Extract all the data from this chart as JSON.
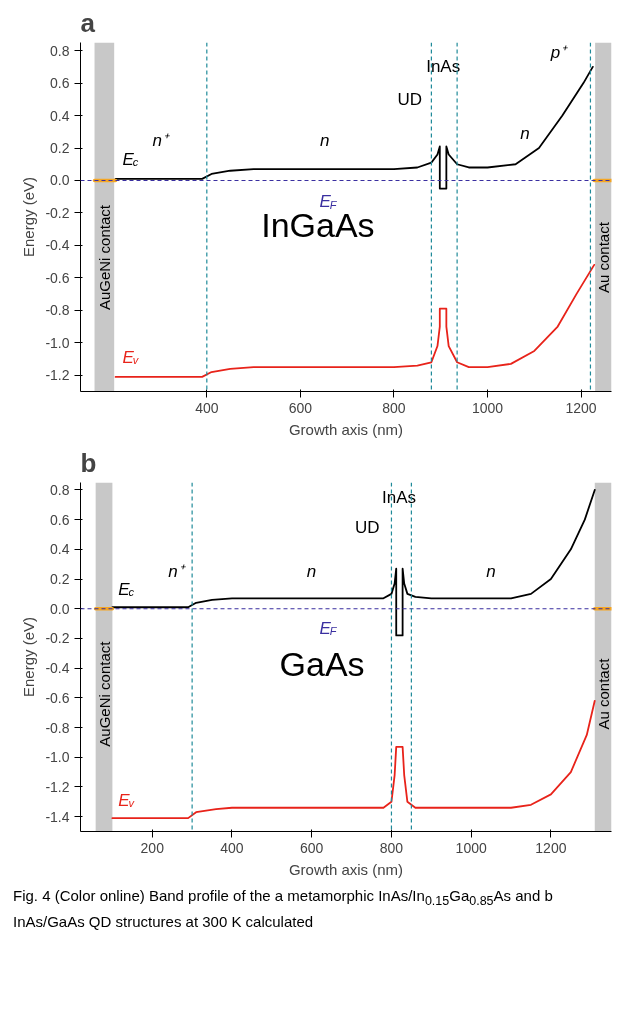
{
  "chart_data": [
    {
      "type": "line",
      "title": "a",
      "subtitle": "InGaAs",
      "xlabel": "Growth axis (nm)",
      "ylabel": "Energy (eV)",
      "xlim": [
        130,
        1265
      ],
      "ylim": [
        -1.3,
        0.85
      ],
      "xticks": [
        400,
        600,
        800,
        1000,
        1200
      ],
      "yticks": [
        {
          "value": 0.8,
          "label": "0.8"
        },
        {
          "value": 0.6,
          "label": "0.6"
        },
        {
          "value": 0.4,
          "label": "0.4"
        },
        {
          "value": 0.2,
          "label": "0.2"
        },
        {
          "value": 0,
          "label": "0.0"
        },
        {
          "value": -0.2,
          "label": "-0.2"
        },
        {
          "value": -0.4,
          "label": "-0.4"
        },
        {
          "value": -0.6,
          "label": "-0.6"
        },
        {
          "value": -0.8,
          "label": "-0.8"
        },
        {
          "value": -1.0,
          "label": "-1.0"
        },
        {
          "value": -1.2,
          "label": "-1.2"
        }
      ],
      "grid": false,
      "legend": "left",
      "line_style": "solid",
      "marker": "none",
      "series": [
        {
          "name": "E$_{c}$",
          "color": "#000000",
          "x": [
            205,
            300,
            390,
            410,
            450,
            500,
            600,
            700,
            800,
            850,
            880,
            893,
            898,
            898,
            912,
            912,
            917,
            935,
            960,
            1000,
            1060,
            1110,
            1160,
            1205,
            1225
          ],
          "values": [
            0.01,
            0.01,
            0.01,
            0.04,
            0.06,
            0.07,
            0.07,
            0.07,
            0.07,
            0.08,
            0.11,
            0.16,
            0.21,
            -0.05,
            -0.05,
            0.21,
            0.16,
            0.1,
            0.08,
            0.08,
            0.1,
            0.2,
            0.4,
            0.6,
            0.7
          ]
        },
        {
          "name": "E$_{v}$",
          "color": "#e8231a",
          "x": [
            205,
            300,
            390,
            410,
            450,
            500,
            600,
            700,
            800,
            850,
            880,
            893,
            898,
            898,
            912,
            912,
            917,
            935,
            960,
            1000,
            1050,
            1100,
            1150,
            1190,
            1228
          ],
          "values": [
            -1.21,
            -1.21,
            -1.21,
            -1.18,
            -1.16,
            -1.15,
            -1.15,
            -1.15,
            -1.15,
            -1.14,
            -1.12,
            -1.02,
            -0.9,
            -0.79,
            -0.79,
            -0.9,
            -1.02,
            -1.12,
            -1.15,
            -1.15,
            -1.13,
            -1.05,
            -0.9,
            -0.7,
            -0.52
          ]
        },
        {
          "color": "#f5a623",
          "x": [
            160,
            205
          ],
          "values": [
            0,
            0
          ]
        },
        {
          "color": "#f5a623",
          "x": [
            1228,
            1265
          ],
          "values": [
            0,
            0
          ]
        }
      ],
      "ref_lines": [
        {
          "axis": "y",
          "value": 0,
          "label": "E$_{F}$",
          "color": "#3a2fa0",
          "line_style": "dashed"
        },
        {
          "axis": "x",
          "value": 400,
          "color": "#1f8a99",
          "line_style": "dashed"
        },
        {
          "axis": "x",
          "value": 880,
          "color": "#1f8a99",
          "line_style": "dashed"
        },
        {
          "axis": "x",
          "value": 935,
          "color": "#1f8a99",
          "line_style": "dashed"
        },
        {
          "axis": "x",
          "value": 1220,
          "color": "#1f8a99",
          "line_style": "dashed"
        }
      ],
      "bands": [
        {
          "axis": "x",
          "from": 160,
          "to": 202,
          "label": "AuGeNi contact",
          "color": "#c8c8c8"
        },
        {
          "axis": "x",
          "from": 1230,
          "to": 1265,
          "label": "Au contact",
          "color": "#c8c8c8"
        }
      ],
      "annotations": [
        "n⁺",
        "n",
        "UD",
        "InAs",
        "n",
        "p⁺"
      ]
    },
    {
      "type": "line",
      "title": "b",
      "subtitle": "GaAs",
      "xlabel": "Growth axis (nm)",
      "ylabel": "Energy (eV)",
      "xlim": [
        20,
        1352
      ],
      "ylim": [
        -1.5,
        0.85
      ],
      "xticks": [
        200,
        400,
        600,
        800,
        1000,
        1200
      ],
      "yticks": [
        {
          "value": 0.8,
          "label": "0.8"
        },
        {
          "value": 0.6,
          "label": "0.6"
        },
        {
          "value": 0.4,
          "label": "0.4"
        },
        {
          "value": 0.2,
          "label": "0.2"
        },
        {
          "value": 0,
          "label": "0.0"
        },
        {
          "value": -0.2,
          "label": "-0.2"
        },
        {
          "value": -0.4,
          "label": "-0.4"
        },
        {
          "value": -0.6,
          "label": "-0.6"
        },
        {
          "value": -0.8,
          "label": "-0.8"
        },
        {
          "value": -1.0,
          "label": "-1.0"
        },
        {
          "value": -1.2,
          "label": "-1.2"
        },
        {
          "value": -1.4,
          "label": "-1.4"
        }
      ],
      "grid": false,
      "legend": "left",
      "line_style": "solid",
      "marker": "none",
      "series": [
        {
          "name": "E$_{c}$",
          "color": "#000000",
          "x": [
            100,
            200,
            290,
            310,
            350,
            400,
            600,
            780,
            800,
            808,
            812,
            812,
            828,
            828,
            832,
            840,
            860,
            900,
            1000,
            1100,
            1150,
            1200,
            1250,
            1285,
            1310
          ],
          "values": [
            0.01,
            0.01,
            0.01,
            0.04,
            0.06,
            0.07,
            0.07,
            0.07,
            0.1,
            0.17,
            0.27,
            -0.18,
            -0.18,
            0.27,
            0.17,
            0.1,
            0.08,
            0.07,
            0.07,
            0.07,
            0.1,
            0.2,
            0.4,
            0.6,
            0.8
          ]
        },
        {
          "name": "E$_{v}$",
          "color": "#e8231a",
          "x": [
            100,
            200,
            290,
            310,
            360,
            400,
            600,
            780,
            800,
            808,
            812,
            812,
            828,
            828,
            832,
            840,
            860,
            900,
            1000,
            1100,
            1150,
            1200,
            1250,
            1290,
            1310
          ],
          "values": [
            -1.41,
            -1.41,
            -1.41,
            -1.37,
            -1.35,
            -1.34,
            -1.34,
            -1.34,
            -1.3,
            -1.12,
            -0.93,
            -0.93,
            -0.93,
            -0.93,
            -1.12,
            -1.3,
            -1.34,
            -1.34,
            -1.34,
            -1.34,
            -1.32,
            -1.25,
            -1.1,
            -0.85,
            -0.62
          ]
        },
        {
          "color": "#f5a623",
          "x": [
            58,
            100
          ],
          "values": [
            0,
            0
          ]
        },
        {
          "color": "#f5a623",
          "x": [
            1310,
            1352
          ],
          "values": [
            0,
            0
          ]
        }
      ],
      "ref_lines": [
        {
          "axis": "y",
          "value": 0,
          "label": "E$_{F}$",
          "color": "#3a2fa0",
          "line_style": "dashed"
        },
        {
          "axis": "x",
          "value": 300,
          "color": "#1f8a99",
          "line_style": "dashed"
        },
        {
          "axis": "x",
          "value": 800,
          "color": "#1f8a99",
          "line_style": "dashed"
        },
        {
          "axis": "x",
          "value": 850,
          "color": "#1f8a99",
          "line_style": "dashed"
        }
      ],
      "bands": [
        {
          "axis": "x",
          "from": 58,
          "to": 100,
          "label": "AuGeNi contact",
          "color": "#c8c8c8"
        },
        {
          "axis": "x",
          "from": 1310,
          "to": 1352,
          "label": "Au contact",
          "color": "#c8c8c8"
        }
      ],
      "annotations": [
        "n⁺",
        "n",
        "UD",
        "InAs",
        "n",
        "Fig. 4 (Color online) Band profile of the a metamorphic InAs/In$_{0.15}$Ga$_{0.85}$As and b InAs/GaAs QD structures at 300 K calculated"
      ]
    }
  ]
}
